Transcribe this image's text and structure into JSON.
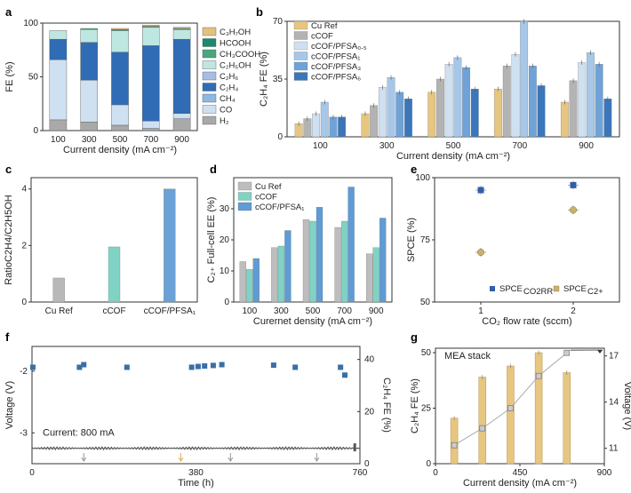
{
  "panels": {
    "a": "a",
    "b": "b",
    "c": "c",
    "d": "d",
    "e": "e",
    "f": "f",
    "g": "g"
  },
  "chart_data": [
    {
      "panel": "a",
      "type": "bar",
      "stacked": true,
      "categories": [
        "100",
        "300",
        "500",
        "700",
        "900"
      ],
      "xlabel": "Current density (mA cm⁻²)",
      "ylabel": "FE (%)",
      "ylim": [
        0,
        100
      ],
      "yticks": [
        0,
        50,
        100
      ],
      "series": [
        {
          "name": "H₂",
          "color": "#a9a9a9",
          "values": [
            10,
            8,
            5,
            2,
            11
          ]
        },
        {
          "name": "CO",
          "color": "#cfe0f1",
          "values": [
            56,
            39,
            19,
            7,
            5
          ]
        },
        {
          "name": "CH₄",
          "color": "#8cb8e2",
          "values": [
            0,
            0,
            0,
            0,
            0
          ]
        },
        {
          "name": "C₂H₄",
          "color": "#2f6cb5",
          "values": [
            19,
            35,
            49,
            70,
            69
          ]
        },
        {
          "name": "C₂H₆",
          "color": "#a7bde6",
          "values": [
            0,
            0,
            0,
            0,
            0
          ]
        },
        {
          "name": "C₂H₅OH",
          "color": "#bfe7e2",
          "values": [
            8,
            12,
            20,
            17,
            9
          ]
        },
        {
          "name": "CH₃COOH",
          "color": "#4aa67f",
          "values": [
            0,
            1,
            1,
            1,
            1
          ]
        },
        {
          "name": "HCOOH",
          "color": "#1a8a6a",
          "values": [
            0,
            0,
            0,
            0,
            0
          ]
        },
        {
          "name": "C₃H₇OH",
          "color": "#e4c27d",
          "values": [
            0,
            0,
            1,
            1,
            1
          ]
        }
      ]
    },
    {
      "panel": "b",
      "type": "bar",
      "categories": [
        "100",
        "300",
        "500",
        "700",
        "900"
      ],
      "xlabel": "Current density (mA cm⁻²)",
      "ylabel": "C₂H₄ FE (%)",
      "ylim": [
        0,
        70
      ],
      "yticks": [
        0,
        35,
        70
      ],
      "series": [
        {
          "name": "Cu Ref",
          "color": "#e6c680",
          "values": [
            8,
            14,
            27,
            29,
            21
          ]
        },
        {
          "name": "cCOF",
          "color": "#b3b3b3",
          "values": [
            11,
            19,
            35,
            43,
            34
          ]
        },
        {
          "name": "cCOF/PFSA₀.₅",
          "color": "#cfe0f1",
          "values": [
            14,
            30,
            44,
            50,
            45
          ]
        },
        {
          "name": "cCOF/PFSA₁",
          "color": "#a6c7e8",
          "values": [
            21,
            36,
            48,
            70,
            51
          ]
        },
        {
          "name": "cCOF/PFSA₃",
          "color": "#6fa3d8",
          "values": [
            12,
            27,
            42,
            43,
            44
          ]
        },
        {
          "name": "cCOF/PFSA₆",
          "color": "#3b76ba",
          "values": [
            12,
            23,
            29,
            31,
            23
          ]
        }
      ]
    },
    {
      "panel": "c",
      "type": "bar",
      "categories": [
        "Cu Ref",
        "cCOF",
        "cCOF/PFSA₁"
      ],
      "ylabel": "RatioC2H4/C2H5OH",
      "ylim": [
        0,
        4.4
      ],
      "yticks": [
        0,
        2,
        4
      ],
      "colors": [
        "#b8b8b8",
        "#7fd3c4",
        "#6aa1d6"
      ],
      "values": [
        0.85,
        1.95,
        4.0
      ]
    },
    {
      "panel": "d",
      "type": "bar",
      "categories": [
        "100",
        "300",
        "500",
        "700",
        "900"
      ],
      "xlabel": "Curernet density (mA cm⁻²)",
      "ylabel": "C₂₊ Full-cell EE (%)",
      "ylim": [
        0,
        40
      ],
      "yticks": [
        0,
        10,
        20,
        30
      ],
      "series": [
        {
          "name": "Cu Ref",
          "color": "#bdbdbd",
          "values": [
            13,
            17.5,
            26.5,
            24,
            15.5
          ]
        },
        {
          "name": "cCOF",
          "color": "#7fd3c4",
          "values": [
            10.5,
            18,
            26,
            26,
            17.5
          ]
        },
        {
          "name": "cCOF/PFSA₁",
          "color": "#5f9bd5",
          "values": [
            14,
            23,
            30.5,
            37,
            27
          ]
        }
      ]
    },
    {
      "panel": "e",
      "type": "scatter",
      "xlabel": "CO₂ flow rate (sccm)",
      "ylabel": "SPCE (%)",
      "xlim": [
        0.5,
        2.5
      ],
      "xticks": [
        1,
        2
      ],
      "ylim": [
        50,
        100
      ],
      "yticks": [
        50,
        75,
        100
      ],
      "series": [
        {
          "name": "SPCE_CO2RR",
          "color": "#2f5fa8",
          "x": [
            1,
            2
          ],
          "y": [
            95,
            97
          ]
        },
        {
          "name": "SPCE_C2+",
          "color": "#c9b06e",
          "x": [
            1,
            2
          ],
          "y": [
            70,
            87
          ]
        }
      ]
    },
    {
      "panel": "f",
      "type": "scatter",
      "xlabel": "Time (h)",
      "ylabel": "Voltage (V)",
      "ylabel_right": "C₂H₄ FE (%)",
      "xlim": [
        0,
        760
      ],
      "xticks": [
        0,
        380,
        760
      ],
      "ylim_left": [
        -3.5,
        -1.6
      ],
      "yticks_left": [
        -3,
        -2
      ],
      "ylim_right": [
        0,
        45
      ],
      "yticks_right": [
        0,
        20,
        40
      ],
      "annotation": "Current: 800 mA",
      "fe_points": {
        "color": "#3a6fa5",
        "x": [
          2,
          110,
          120,
          220,
          370,
          385,
          400,
          420,
          440,
          560,
          610,
          715,
          725
        ],
        "y": [
          37,
          37,
          38,
          37,
          37,
          37.3,
          37.5,
          37.7,
          38,
          37.8,
          37,
          37,
          34
        ]
      },
      "voltage_level": -3.25,
      "arrow_x": [
        120,
        345,
        460,
        660
      ],
      "arrow_colors": [
        "#999999",
        "#e0b450",
        "#999999",
        "#999999"
      ]
    },
    {
      "panel": "g",
      "type": "bar",
      "title": "MEA stack",
      "xlabel": "Current density (mA cm⁻²)",
      "ylabel": "C₂H₄ FE (%)",
      "ylabel_right": "Voltage (V)",
      "xlim": [
        0,
        900
      ],
      "xticks": [
        0,
        450,
        900
      ],
      "ylim_left": [
        0,
        52
      ],
      "yticks_left": [
        0,
        25,
        50
      ],
      "ylim_right": [
        10,
        17.5
      ],
      "yticks_right": [
        11,
        14,
        17
      ],
      "x": [
        100,
        250,
        400,
        550,
        700
      ],
      "fe_values": [
        20.5,
        39,
        44,
        50,
        41
      ],
      "bar_color": "#e6c680",
      "voltage_values": [
        11.2,
        12.3,
        13.6,
        15.7,
        17.2
      ],
      "voltage_color": "#aaaaaa"
    }
  ]
}
